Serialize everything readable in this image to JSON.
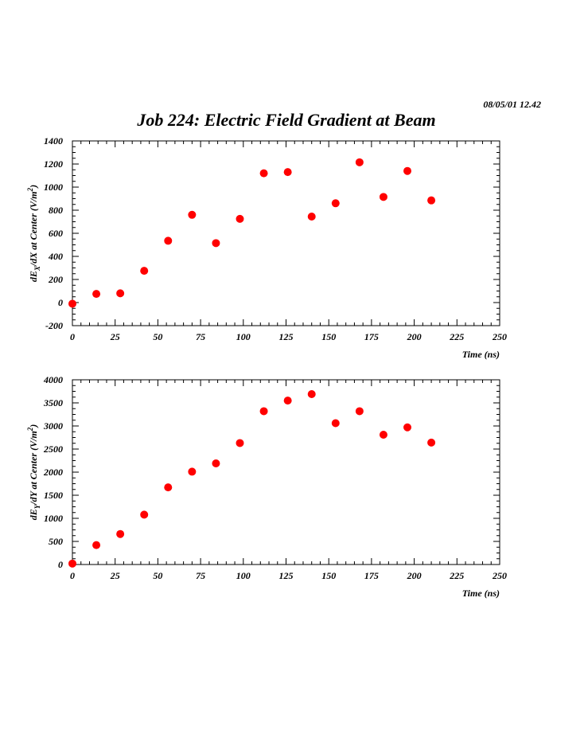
{
  "header": {
    "timestamp": "08/05/01   12.42",
    "title": "Job 224: Electric Field Gradient at Beam"
  },
  "colors": {
    "marker": "#ff0000",
    "axis": "#000000"
  },
  "chart_data": [
    {
      "type": "scatter",
      "title": "",
      "xlabel": "Time (ns)",
      "ylabel": "dE_X/dX at Center (V/m^2)",
      "ylabel_parts": {
        "pre": "dE",
        "sub": "X",
        "mid": "/dX at Center (V/m",
        "sup": "2",
        "post": ")"
      },
      "xlim": [
        0,
        250
      ],
      "ylim": [
        -200,
        1400
      ],
      "xticks": [
        0,
        25,
        50,
        75,
        100,
        125,
        150,
        175,
        200,
        225,
        250
      ],
      "yticks": [
        -200,
        0,
        200,
        400,
        600,
        800,
        1000,
        1200,
        1400
      ],
      "grid": false,
      "x": [
        0,
        14,
        28,
        42,
        56,
        70,
        84,
        98,
        112,
        126,
        140,
        154,
        168,
        182,
        196,
        210
      ],
      "y": [
        -10,
        75,
        80,
        275,
        535,
        760,
        515,
        725,
        1120,
        1130,
        745,
        860,
        1215,
        915,
        1140,
        885
      ]
    },
    {
      "type": "scatter",
      "title": "",
      "xlabel": "Time (ns)",
      "ylabel": "dE_Y/dY at Center (V/m^2)",
      "ylabel_parts": {
        "pre": "dE",
        "sub": "Y",
        "mid": "/dY at Center (V/m",
        "sup": "2",
        "post": ")"
      },
      "xlim": [
        0,
        250
      ],
      "ylim": [
        0,
        4000
      ],
      "xticks": [
        0,
        25,
        50,
        75,
        100,
        125,
        150,
        175,
        200,
        225,
        250
      ],
      "yticks": [
        0,
        500,
        1000,
        1500,
        2000,
        2500,
        3000,
        3500,
        4000
      ],
      "grid": false,
      "x": [
        0,
        14,
        28,
        42,
        56,
        70,
        84,
        98,
        112,
        126,
        140,
        154,
        168,
        182,
        196,
        210
      ],
      "y": [
        20,
        420,
        660,
        1080,
        1670,
        2010,
        2190,
        2630,
        3320,
        3550,
        3690,
        3060,
        3320,
        2810,
        2970,
        2640
      ]
    }
  ]
}
